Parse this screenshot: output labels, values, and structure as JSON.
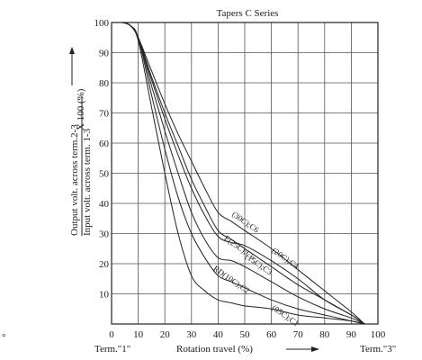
{
  "chart_data": {
    "type": "line",
    "title": "Tapers C Series",
    "xlabel": "Rotation travel (%)",
    "ylabel_top": "Output volt. across term.2-3",
    "ylabel_bottom": "Input volt. across term. 1-3",
    "ylabel_suffix": "X 100 (%)",
    "x_left_terminal": "Term.\"1\"",
    "x_right_terminal": "Term.\"3\"",
    "side_marker": "°",
    "xlim": [
      0,
      100
    ],
    "ylim": [
      0,
      100
    ],
    "xticks": [
      0,
      10,
      20,
      30,
      40,
      50,
      60,
      70,
      80,
      90,
      100
    ],
    "yticks": [
      10,
      20,
      30,
      40,
      50,
      60,
      70,
      80,
      90,
      100
    ],
    "grid": true,
    "series": [
      {
        "name": "(30C);C6",
        "x": [
          4,
          7,
          10,
          15,
          20,
          25,
          30,
          35,
          40,
          45,
          50,
          60,
          70,
          80,
          90,
          95
        ],
        "y": [
          100,
          99,
          95,
          84,
          73,
          63,
          54,
          45,
          37,
          34,
          31,
          25,
          18,
          11,
          4,
          0
        ]
      },
      {
        "name": "(25C);C5",
        "x": [
          4,
          7,
          10,
          15,
          20,
          25,
          30,
          35,
          40,
          45,
          50,
          60,
          70,
          80,
          90,
          95
        ],
        "y": [
          100,
          99,
          95,
          82,
          70,
          59,
          48,
          39,
          31,
          28,
          25,
          19,
          13,
          8,
          3,
          0
        ]
      },
      {
        "name": "(20C);C4",
        "x": [
          4,
          7,
          10,
          15,
          20,
          25,
          30,
          35,
          40,
          45,
          50,
          60,
          70,
          80,
          90,
          95
        ],
        "y": [
          100,
          99,
          95,
          81,
          68,
          56,
          45,
          36,
          29,
          27,
          26,
          21,
          15,
          8,
          3,
          0
        ]
      },
      {
        "name": "(15C);C3",
        "x": [
          4,
          7,
          10,
          15,
          20,
          25,
          30,
          35,
          40,
          45,
          50,
          60,
          70,
          80,
          90,
          95
        ],
        "y": [
          100,
          99,
          95,
          79,
          64,
          50,
          37,
          28,
          22,
          21,
          19,
          14,
          9,
          5,
          2,
          0
        ]
      },
      {
        "name": "(10C);C2",
        "x": [
          4,
          7,
          10,
          15,
          20,
          25,
          30,
          35,
          40,
          45,
          50,
          60,
          70,
          80,
          90,
          95
        ],
        "y": [
          100,
          99,
          95,
          76,
          58,
          42,
          30,
          22,
          16,
          14,
          12,
          8,
          5,
          3,
          1,
          0
        ]
      },
      {
        "name": "(05C);C1",
        "x": [
          4,
          7,
          10,
          15,
          20,
          25,
          30,
          35,
          40,
          45,
          50,
          60,
          70,
          80,
          90,
          95
        ],
        "y": [
          100,
          99,
          94,
          72,
          50,
          30,
          16,
          11,
          8,
          7,
          6,
          5,
          3,
          2,
          1,
          0
        ]
      }
    ],
    "annotations": [
      {
        "text": "(30C);C6",
        "x": 45,
        "y": 36
      },
      {
        "text": "E(25C);C5",
        "x": 42,
        "y": 28
      },
      {
        "text": "(20C);C4",
        "x": 60,
        "y": 24
      },
      {
        "text": "(15C);C3",
        "x": 50,
        "y": 22
      },
      {
        "text": "RD(10C);C2",
        "x": 38,
        "y": 18
      },
      {
        "text": "(05C);C1",
        "x": 60,
        "y": 5
      }
    ]
  }
}
